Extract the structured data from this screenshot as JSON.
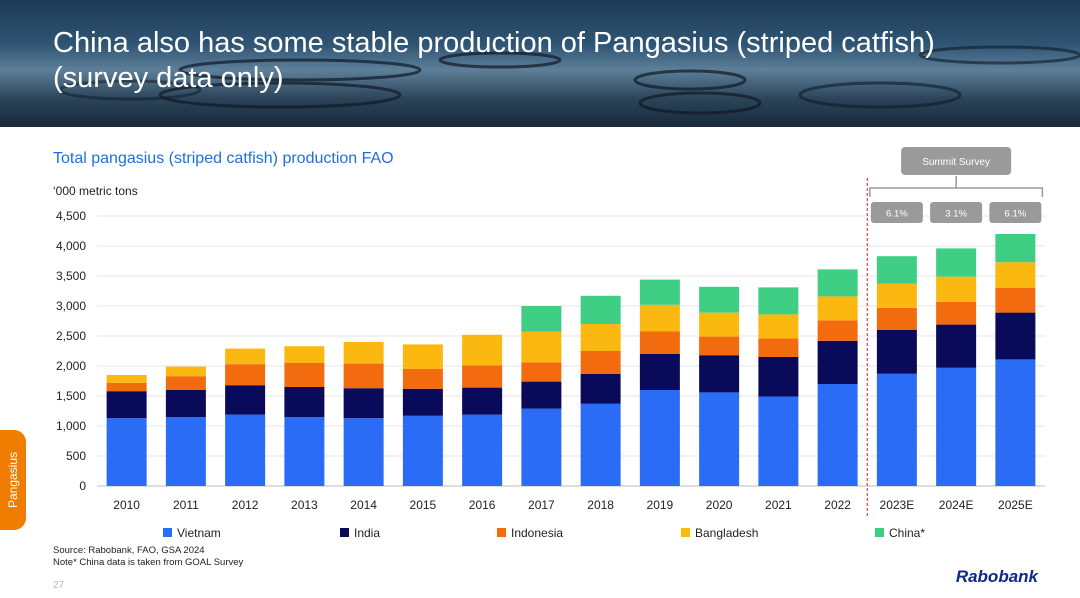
{
  "title_line1": "China also has some stable production of Pangasius (striped catfish)",
  "title_line2": "(survey data only)",
  "side_tab_label": "Pangasius",
  "source_line1": "Source: Rabobank, FAO, GSA 2024",
  "source_line2": "Note* China data is taken from GOAL Survey",
  "page_number": "27",
  "brand": "Rabobank",
  "chart_data": {
    "type": "bar",
    "stacked": true,
    "title": "Total pangasius (striped catfish)  production FAO",
    "ylabel": "‘000 metric tons",
    "xlabel": "",
    "ylim": [
      0,
      4500
    ],
    "yticks": [
      "0",
      "500",
      "1,000",
      "1,500",
      "2,000",
      "2,500",
      "3,000",
      "3,500",
      "4,000",
      "4,500"
    ],
    "categories": [
      "2010",
      "2011",
      "2012",
      "2013",
      "2014",
      "2015",
      "2016",
      "2017",
      "2018",
      "2019",
      "2020",
      "2021",
      "2022",
      "2023E",
      "2024E",
      "2025E"
    ],
    "series": [
      {
        "name": "Vietnam",
        "color": "#2b6cf6",
        "values": [
          1130,
          1150,
          1190,
          1150,
          1130,
          1170,
          1190,
          1290,
          1370,
          1600,
          1560,
          1490,
          1700,
          1870,
          1970,
          2110
        ]
      },
      {
        "name": "India",
        "color": "#0a0a5a",
        "values": [
          450,
          450,
          490,
          500,
          500,
          450,
          450,
          450,
          500,
          600,
          620,
          660,
          720,
          730,
          720,
          780
        ]
      },
      {
        "name": "Indonesia",
        "color": "#f26b0f",
        "values": [
          140,
          230,
          350,
          400,
          410,
          330,
          370,
          320,
          380,
          380,
          310,
          310,
          340,
          370,
          380,
          410
        ]
      },
      {
        "name": "Bangladesh",
        "color": "#fbb811",
        "values": [
          130,
          160,
          260,
          280,
          360,
          410,
          510,
          510,
          450,
          440,
          400,
          400,
          400,
          400,
          420,
          430
        ]
      },
      {
        "name": "China*",
        "color": "#3ecf84",
        "values": [
          0,
          0,
          0,
          0,
          0,
          0,
          0,
          430,
          470,
          420,
          430,
          450,
          450,
          460,
          470,
          470
        ]
      }
    ],
    "annotations": {
      "survey_label": "Summit Survey",
      "growth_labels": [
        "6.1%",
        "3.1%",
        "6.1%"
      ],
      "growth_categories": [
        "2023E",
        "2024E",
        "2025E"
      ]
    }
  }
}
